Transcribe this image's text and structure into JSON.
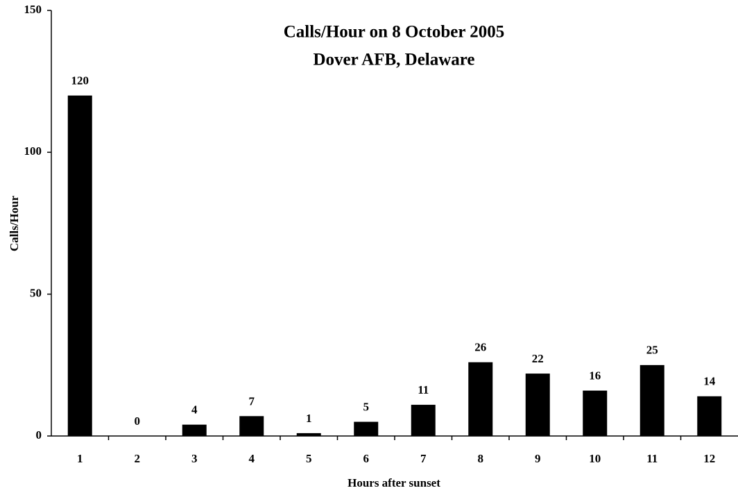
{
  "chart_data": {
    "type": "bar",
    "title": "Calls/Hour on 8 October 2005",
    "subtitle": "Dover AFB, Delaware",
    "x_label": "Hours after sunset",
    "y_label": "Calls/Hour",
    "categories": [
      "1",
      "2",
      "3",
      "4",
      "5",
      "6",
      "7",
      "8",
      "9",
      "10",
      "11",
      "12"
    ],
    "values": [
      120,
      0,
      4,
      7,
      1,
      5,
      11,
      26,
      22,
      16,
      25,
      14
    ],
    "color": "#000000",
    "ylim": [
      0,
      150
    ],
    "yticks": [
      0,
      50,
      100,
      150
    ],
    "grid": false
  }
}
